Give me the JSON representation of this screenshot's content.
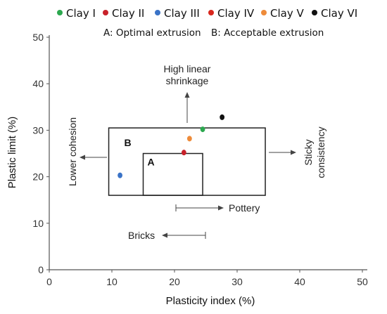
{
  "chart_data": {
    "type": "scatter",
    "xlabel": "Plasticity index (%)",
    "ylabel": "Plastic limit (%)",
    "xlim": [
      0,
      50
    ],
    "ylim": [
      0,
      50
    ],
    "x_ticks": [
      "0",
      "10",
      "20",
      "30",
      "40",
      "50"
    ],
    "y_ticks": [
      "0",
      "10",
      "20",
      "30",
      "40",
      "50"
    ],
    "grid": false,
    "legend_position": "top",
    "legend_notes": [
      "A: Optimal extrusion",
      "B: Acceptable extrusion"
    ],
    "series": [
      {
        "name": "Clay I",
        "color": "#2ca84f",
        "points": [
          {
            "x": 24.5,
            "y": 30.2
          }
        ]
      },
      {
        "name": "Clay II",
        "color": "#c8212a",
        "points": [
          {
            "x": 21.5,
            "y": 25.2
          }
        ]
      },
      {
        "name": "Clay III",
        "color": "#3a73c7",
        "points": [
          {
            "x": 11.3,
            "y": 20.3
          }
        ]
      },
      {
        "name": "Clay IV",
        "color": "#d8271d",
        "points": []
      },
      {
        "name": "Clay V",
        "color": "#ee8b3a",
        "points": [
          {
            "x": 22.4,
            "y": 28.2
          }
        ]
      },
      {
        "name": "Clay VI",
        "color": "#111111",
        "points": [
          {
            "x": 27.6,
            "y": 32.8
          }
        ]
      }
    ],
    "regions": [
      {
        "label": "B",
        "x": [
          9.5,
          34.5
        ],
        "y": [
          16,
          30.5
        ]
      },
      {
        "label": "A",
        "x": [
          15,
          24.5
        ],
        "y": [
          16,
          25
        ]
      }
    ],
    "annotations": [
      {
        "text": "High linear shrinkage",
        "lines": [
          "High linear",
          "shrinkage"
        ],
        "direction": "up"
      },
      {
        "text": "Lower cohesion",
        "direction": "left"
      },
      {
        "text": "Sticky consistency",
        "lines": [
          "Sticky",
          "consistency"
        ],
        "direction": "right"
      },
      {
        "text": "Pottery",
        "range": [
          20,
          27
        ]
      },
      {
        "text": "Bricks",
        "range": [
          18,
          24.5
        ]
      }
    ]
  }
}
